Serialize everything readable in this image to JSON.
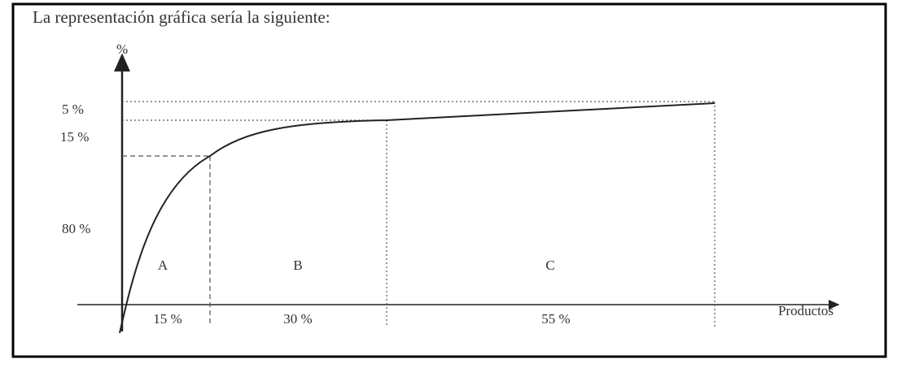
{
  "title": "La representación gráfica sería la siguiente:",
  "y_axis": {
    "label": "%",
    "levels": [
      "5 %",
      "15 %",
      "80 %"
    ]
  },
  "x_axis": {
    "label": "Productos",
    "segments": [
      "15 %",
      "30 %",
      "55 %"
    ]
  },
  "zones": [
    "A",
    "B",
    "C"
  ]
}
